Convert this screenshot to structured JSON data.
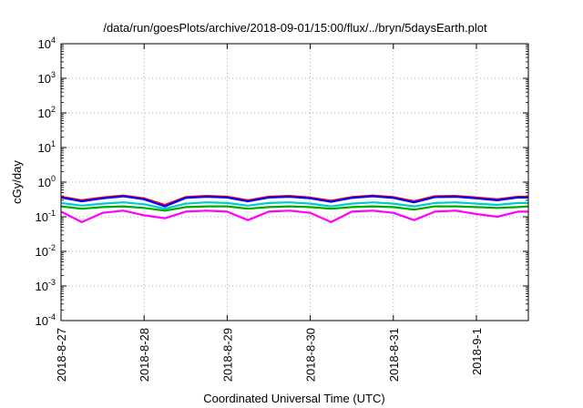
{
  "chart_data": {
    "type": "line",
    "title": "/data/run/goesPlots/archive/2018-09-01/15:00/flux/../bryn/5daysEarth.plot",
    "xlabel": "Coordinated Universal Time (UTC)",
    "ylabel": "cGy/day",
    "yscale": "log",
    "ylim": [
      0.0001,
      10000
    ],
    "xlim": [
      "2018-08-27",
      "2018-09-01 15:00"
    ],
    "grid": true,
    "legend": "none",
    "y_ticks": [
      {
        "base": "10",
        "exp": "-4"
      },
      {
        "base": "10",
        "exp": "-3"
      },
      {
        "base": "10",
        "exp": "-2"
      },
      {
        "base": "10",
        "exp": "-1"
      },
      {
        "base": "10",
        "exp": "0"
      },
      {
        "base": "10",
        "exp": "1"
      },
      {
        "base": "10",
        "exp": "2"
      },
      {
        "base": "10",
        "exp": "3"
      },
      {
        "base": "10",
        "exp": "4"
      }
    ],
    "x_ticks": [
      "2018-8-27",
      "2018-8-28",
      "2018-8-29",
      "2018-8-30",
      "2018-8-31",
      "2018-9-1"
    ],
    "x_hours": [
      "2018-08-27 00:00",
      "2018-08-27 06:00",
      "2018-08-27 12:00",
      "2018-08-27 18:00",
      "2018-08-28 00:00",
      "2018-08-28 06:00",
      "2018-08-28 12:00",
      "2018-08-28 18:00",
      "2018-08-29 00:00",
      "2018-08-29 06:00",
      "2018-08-29 12:00",
      "2018-08-29 18:00",
      "2018-08-30 00:00",
      "2018-08-30 06:00",
      "2018-08-30 12:00",
      "2018-08-30 18:00",
      "2018-08-31 00:00",
      "2018-08-31 06:00",
      "2018-08-31 12:00",
      "2018-08-31 18:00",
      "2018-09-01 00:00",
      "2018-09-01 06:00",
      "2018-09-01 12:00",
      "2018-09-01 15:00"
    ],
    "series": [
      {
        "color": "#ff0000",
        "values": [
          0.38,
          0.3,
          0.36,
          0.41,
          0.34,
          0.22,
          0.37,
          0.4,
          0.38,
          0.3,
          0.38,
          0.4,
          0.36,
          0.29,
          0.37,
          0.41,
          0.37,
          0.28,
          0.39,
          0.4,
          0.36,
          0.32,
          0.38,
          0.38
        ]
      },
      {
        "color": "#0000ff",
        "values": [
          0.36,
          0.28,
          0.34,
          0.39,
          0.32,
          0.2,
          0.35,
          0.38,
          0.36,
          0.28,
          0.36,
          0.38,
          0.34,
          0.27,
          0.35,
          0.39,
          0.35,
          0.26,
          0.37,
          0.38,
          0.34,
          0.3,
          0.36,
          0.36
        ]
      },
      {
        "color": "#00cccc",
        "values": [
          0.25,
          0.21,
          0.24,
          0.26,
          0.23,
          0.17,
          0.24,
          0.26,
          0.25,
          0.21,
          0.25,
          0.26,
          0.24,
          0.2,
          0.24,
          0.26,
          0.24,
          0.2,
          0.25,
          0.26,
          0.24,
          0.22,
          0.25,
          0.25
        ]
      },
      {
        "color": "#00aa00",
        "values": [
          0.2,
          0.17,
          0.19,
          0.2,
          0.18,
          0.15,
          0.19,
          0.2,
          0.2,
          0.17,
          0.19,
          0.2,
          0.19,
          0.17,
          0.19,
          0.2,
          0.19,
          0.16,
          0.2,
          0.2,
          0.19,
          0.18,
          0.19,
          0.2
        ]
      },
      {
        "color": "#ff00ff",
        "values": [
          0.14,
          0.07,
          0.13,
          0.15,
          0.11,
          0.09,
          0.14,
          0.15,
          0.14,
          0.08,
          0.14,
          0.15,
          0.13,
          0.07,
          0.14,
          0.15,
          0.13,
          0.08,
          0.14,
          0.15,
          0.12,
          0.1,
          0.14,
          0.14
        ]
      }
    ]
  }
}
